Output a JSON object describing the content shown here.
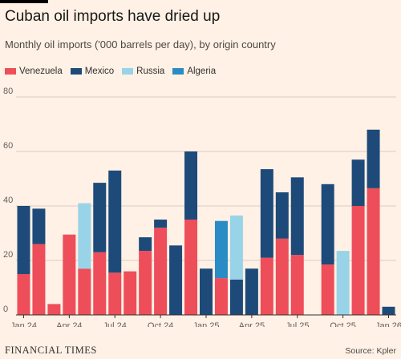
{
  "title": "Cuban oil imports have dried up",
  "subtitle": "Monthly oil imports ('000 barrels per day), by origin country",
  "legend": [
    {
      "name": "Venezuela",
      "color": "#ee4d5a"
    },
    {
      "name": "Mexico",
      "color": "#1e4a7a"
    },
    {
      "name": "Russia",
      "color": "#99d3e8"
    },
    {
      "name": "Algeria",
      "color": "#2a8cc4"
    }
  ],
  "source": "Source: Kpler",
  "publisher": "FINANCIAL TIMES",
  "chart_data": {
    "type": "bar",
    "stacked": true,
    "months": 25,
    "ylim": [
      0,
      80
    ],
    "yticks": [
      0,
      20,
      40,
      60,
      80
    ],
    "xtick_labels": [
      {
        "index": 0,
        "label": "Jan 24"
      },
      {
        "index": 3,
        "label": "Apr 24"
      },
      {
        "index": 6,
        "label": "Jul 24"
      },
      {
        "index": 9,
        "label": "Oct 24"
      },
      {
        "index": 12,
        "label": "Jan 25"
      },
      {
        "index": 15,
        "label": "Apr 25"
      },
      {
        "index": 18,
        "label": "Jul 25"
      },
      {
        "index": 21,
        "label": "Oct 25"
      },
      {
        "index": 24,
        "label": "Jan 26"
      }
    ],
    "series": [
      {
        "name": "Venezuela",
        "values": [
          15,
          26,
          4,
          29.5,
          17,
          23,
          15.5,
          16,
          23.5,
          32,
          0,
          35,
          0,
          13.5,
          0,
          0,
          21,
          28,
          22,
          0,
          18.5,
          0,
          40,
          46.5,
          0
        ]
      },
      {
        "name": "Mexico",
        "values": [
          25,
          13,
          0,
          0,
          0,
          25.5,
          37.5,
          0,
          5,
          3,
          25.5,
          25,
          17,
          0,
          13,
          17,
          32.5,
          17,
          28.5,
          0,
          29.5,
          0,
          17,
          21.5,
          3
        ]
      },
      {
        "name": "Russia",
        "values": [
          0,
          0,
          0,
          0,
          24,
          0,
          0,
          0,
          0,
          0,
          0,
          0,
          0,
          0,
          23.5,
          0,
          0,
          0,
          0,
          0,
          0,
          23.5,
          0,
          0,
          0
        ]
      },
      {
        "name": "Algeria",
        "values": [
          0,
          0,
          0,
          0,
          0,
          0,
          0,
          0,
          0,
          0,
          0,
          0,
          0,
          21,
          0,
          0,
          0,
          0,
          0,
          0,
          0,
          0,
          0,
          0,
          0
        ]
      }
    ]
  }
}
